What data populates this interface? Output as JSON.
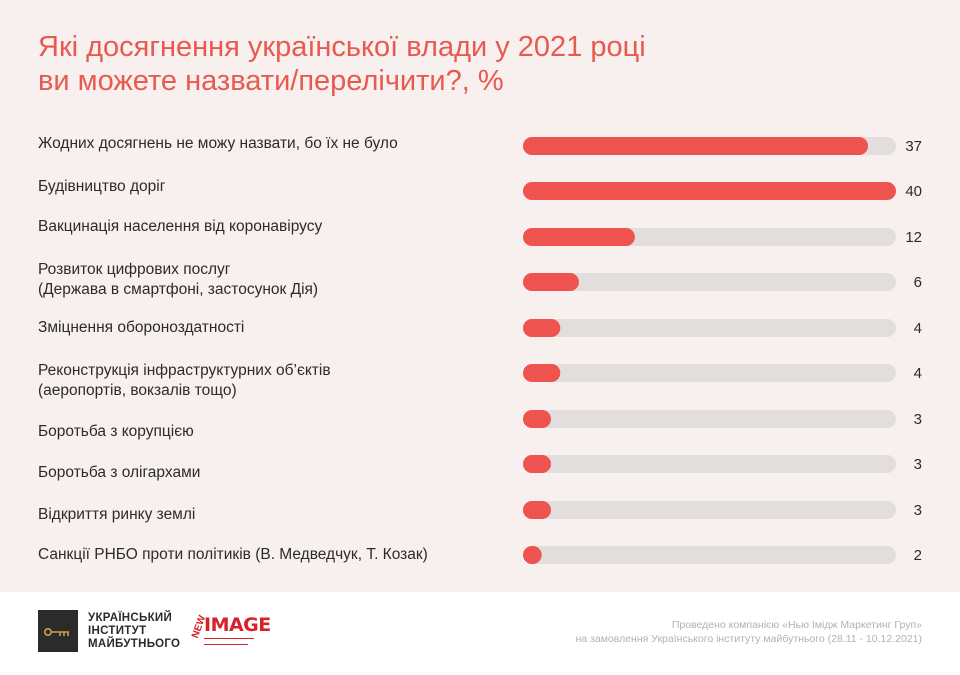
{
  "title_line1": "Які досягнення української влади у 2021 році",
  "title_line2": "ви можете назвати/перелічити?, %",
  "colors": {
    "bar": "#ef5350",
    "track": "#e2dedd",
    "value_text": "#2b2b2b",
    "title": "#e85a50"
  },
  "chart_data": {
    "type": "bar",
    "orientation": "horizontal",
    "xlim": [
      0,
      40
    ],
    "categories": [
      [
        "Жодних досягнень не можу назвати, бо їх не було"
      ],
      [
        "Будівництво доріг"
      ],
      [
        "Вакцинація населення від коронавірусу"
      ],
      [
        "Розвиток цифрових послуг",
        "(Держава в смартфоні, застосунок Дія)"
      ],
      [
        "Зміцнення обороноздатності"
      ],
      [
        "Реконструкція інфраструктурних об’єктів",
        "(аеропортів, вокзалів тощо)"
      ],
      [
        "Боротьба з корупцією"
      ],
      [
        "Боротьба з олігархами"
      ],
      [
        "Відкриття ринку землі"
      ],
      [
        "Санкції РНБО проти політиків (В. Медведчук, Т. Козак)"
      ]
    ],
    "values": [
      37,
      40,
      12,
      6,
      4,
      4,
      3,
      3,
      3,
      2
    ]
  },
  "footer": {
    "institute_line1": "УКРАЇНСЬКИЙ",
    "institute_line2": "ІНСТИТУТ",
    "institute_line3": "МАЙБУТНЬОГО",
    "image_logo_new": "NEW",
    "image_logo_word": "IMAGE",
    "credits_line1": "Проведено компанією «Нью Імідж Маркетинг Груп»",
    "credits_line2": "на замовлення Українського інституту майбутнього (28.11 - 10.12.2021)"
  }
}
